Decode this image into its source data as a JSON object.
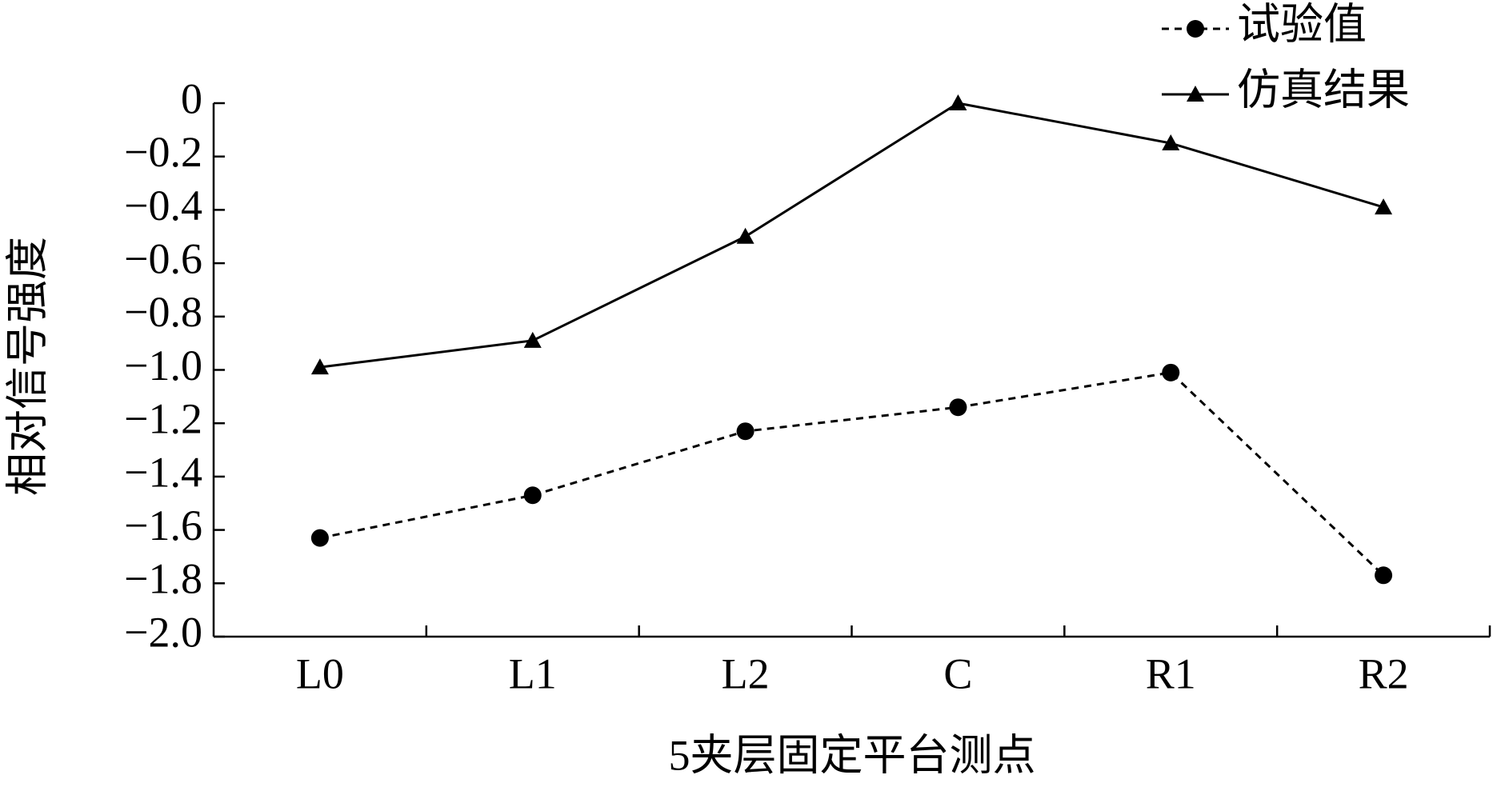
{
  "chart_data": {
    "type": "line",
    "x_label": "5夹层固定平台测点",
    "y_label": "相对信号强度",
    "categories": [
      "L0",
      "L1",
      "L2",
      "C",
      "R1",
      "R2"
    ],
    "series": [
      {
        "name": "试验值",
        "color": "#000000",
        "marker": "circle",
        "dashed": true,
        "values": [
          -1.63,
          -1.47,
          -1.23,
          -1.14,
          -1.01,
          -1.77
        ]
      },
      {
        "name": "仿真结果",
        "color": "#000000",
        "marker": "triangle",
        "dashed": false,
        "values": [
          -0.99,
          -0.89,
          -0.5,
          0.0,
          -0.15,
          -0.39
        ]
      }
    ],
    "ylim": [
      -2.0,
      0
    ],
    "yticks": [
      0,
      {
        "value": -0.2,
        "label": "−0.2"
      },
      {
        "value": -0.4,
        "label": "−0.4"
      },
      {
        "value": -0.6,
        "label": "−0.6"
      },
      {
        "value": -0.8,
        "label": "−0.8"
      },
      {
        "value": -1.0,
        "label": "−1.0"
      },
      {
        "value": -1.2,
        "label": "−1.2"
      },
      {
        "value": -1.4,
        "label": "−1.4"
      },
      {
        "value": -1.6,
        "label": "−1.6"
      },
      {
        "value": -1.8,
        "label": "−1.8"
      },
      {
        "value": -2.0,
        "label": "−2.0"
      }
    ],
    "legend": "top-right",
    "grid": false
  }
}
